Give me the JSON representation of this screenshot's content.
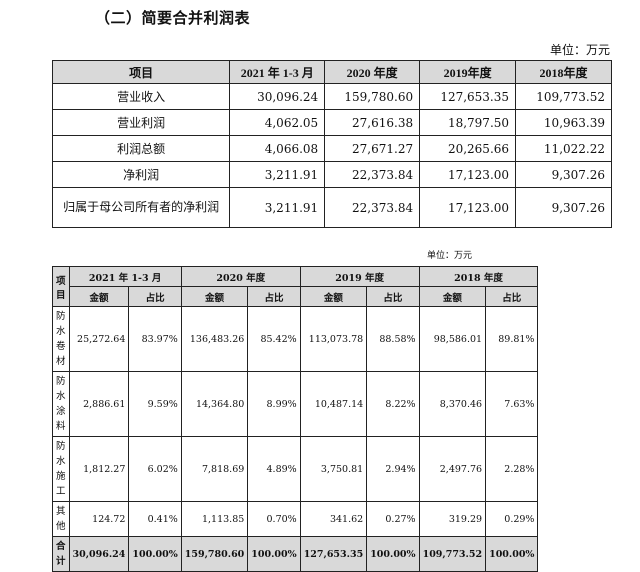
{
  "heading": "（二）简要合并利润表",
  "table1": {
    "unit": "单位：万元",
    "headers": [
      "项目",
      "2021 年 1-3 月",
      "2020 年度",
      "2019年度",
      "2018年度"
    ],
    "rows": [
      {
        "label": "营业收入",
        "values": [
          "30,096.24",
          "159,780.60",
          "127,653.35",
          "109,773.52"
        ]
      },
      {
        "label": "营业利润",
        "values": [
          "4,062.05",
          "27,616.38",
          "18,797.50",
          "10,963.39"
        ]
      },
      {
        "label": "利润总额",
        "values": [
          "4,066.08",
          "27,671.27",
          "20,265.66",
          "11,022.22"
        ]
      },
      {
        "label": "净利润",
        "values": [
          "3,211.91",
          "22,373.84",
          "17,123.00",
          "9,307.26"
        ]
      },
      {
        "label": "归属于母公司所有者的净利润",
        "values": [
          "3,211.91",
          "22,373.84",
          "17,123.00",
          "9,307.26"
        ]
      }
    ]
  },
  "table2": {
    "unit": "单位：万元",
    "item_header": "项目",
    "periods": [
      "2021 年 1-3 月",
      "2020 年度",
      "2019 年度",
      "2018 年度"
    ],
    "sub_headers": [
      "金额",
      "占比",
      "金额",
      "占比",
      "金额",
      "占比",
      "金额",
      "占比"
    ],
    "rows": [
      {
        "label": "防水卷材",
        "values": [
          "25,272.64",
          "83.97%",
          "136,483.26",
          "85.42%",
          "113,073.78",
          "88.58%",
          "98,586.01",
          "89.81%"
        ]
      },
      {
        "label": "防水涂料",
        "values": [
          "2,886.61",
          "9.59%",
          "14,364.80",
          "8.99%",
          "10,487.14",
          "8.22%",
          "8,370.46",
          "7.63%"
        ]
      },
      {
        "label": "防水施工",
        "values": [
          "1,812.27",
          "6.02%",
          "7,818.69",
          "4.89%",
          "3,750.81",
          "2.94%",
          "2,497.76",
          "2.28%"
        ]
      },
      {
        "label": "其他",
        "values": [
          "124.72",
          "0.41%",
          "1,113.85",
          "0.70%",
          "341.62",
          "0.27%",
          "319.29",
          "0.29%"
        ]
      }
    ],
    "total": {
      "label": "合计",
      "values": [
        "30,096.24",
        "100.00%",
        "159,780.60",
        "100.00%",
        "127,653.35",
        "100.00%",
        "109,773.52",
        "100.00%"
      ]
    }
  }
}
